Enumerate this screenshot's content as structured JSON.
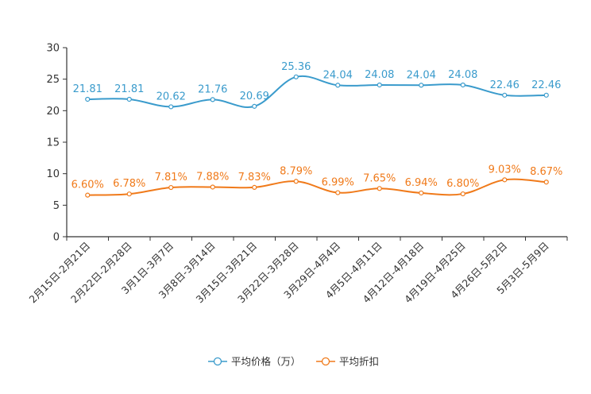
{
  "chart_data": {
    "type": "line",
    "title": "",
    "xlabel": "",
    "ylabel": "",
    "ylim": [
      0,
      30
    ],
    "yticks": [
      0,
      5,
      10,
      15,
      20,
      25,
      30
    ],
    "grid": false,
    "legend_position": "bottom-center",
    "categories": [
      "2月15日-2月21日",
      "2月22日-2月28日",
      "3月1日-3月7日",
      "3月8日-3月14日",
      "3月15日-3月21日",
      "3月22日-3月28日",
      "3月29日-4月4日",
      "4月5日-4月11日",
      "4月12日-4月18日",
      "4月19日-4月25日",
      "4月26日-5月2日",
      "5月3日-5月9日"
    ],
    "series": [
      {
        "name": "平均价格（万）",
        "color": "#3a9bcc",
        "values": [
          21.81,
          21.81,
          20.62,
          21.76,
          20.69,
          25.36,
          24.04,
          24.08,
          24.04,
          24.08,
          22.46,
          22.46
        ],
        "labels": [
          "21.81",
          "21.81",
          "20.62",
          "21.76",
          "20.69",
          "25.36",
          "24.04",
          "24.08",
          "24.04",
          "24.08",
          "22.46",
          "22.46"
        ]
      },
      {
        "name": "平均折扣",
        "color": "#f07a1a",
        "values": [
          6.6,
          6.78,
          7.81,
          7.88,
          7.83,
          8.79,
          6.99,
          7.65,
          6.94,
          6.8,
          9.03,
          8.67
        ],
        "labels": [
          "6.60%",
          "6.78%",
          "7.81%",
          "7.88%",
          "7.83%",
          "8.79%",
          "6.99%",
          "7.65%",
          "6.94%",
          "6.80%",
          "9.03%",
          "8.67%"
        ]
      }
    ]
  }
}
